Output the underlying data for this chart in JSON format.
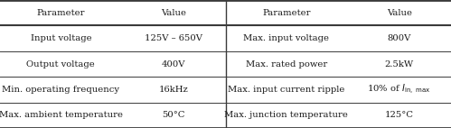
{
  "headers": [
    "Parameter",
    "Value",
    "Parameter",
    "Value"
  ],
  "rows": [
    [
      "Input voltage",
      "125V – 650V",
      "Max. input voltage",
      "800V"
    ],
    [
      "Output voltage",
      "400V",
      "Max. rated power",
      "2.5kW"
    ],
    [
      "Min. operating frequency",
      "16kHz",
      "Max. input current ripple",
      "10% of $\\mathit{I}_{\\mathrm{in,\\ max}}$"
    ],
    [
      "Max. ambient temperature",
      "50°C",
      "Max. junction temperature",
      "125°C"
    ]
  ],
  "bg_color": "#ffffff",
  "line_color": "#3a3a3a",
  "text_color": "#1a1a1a",
  "font_size": 7.2,
  "col_splits": [
    0.0,
    0.27,
    0.5,
    0.77,
    1.0
  ]
}
